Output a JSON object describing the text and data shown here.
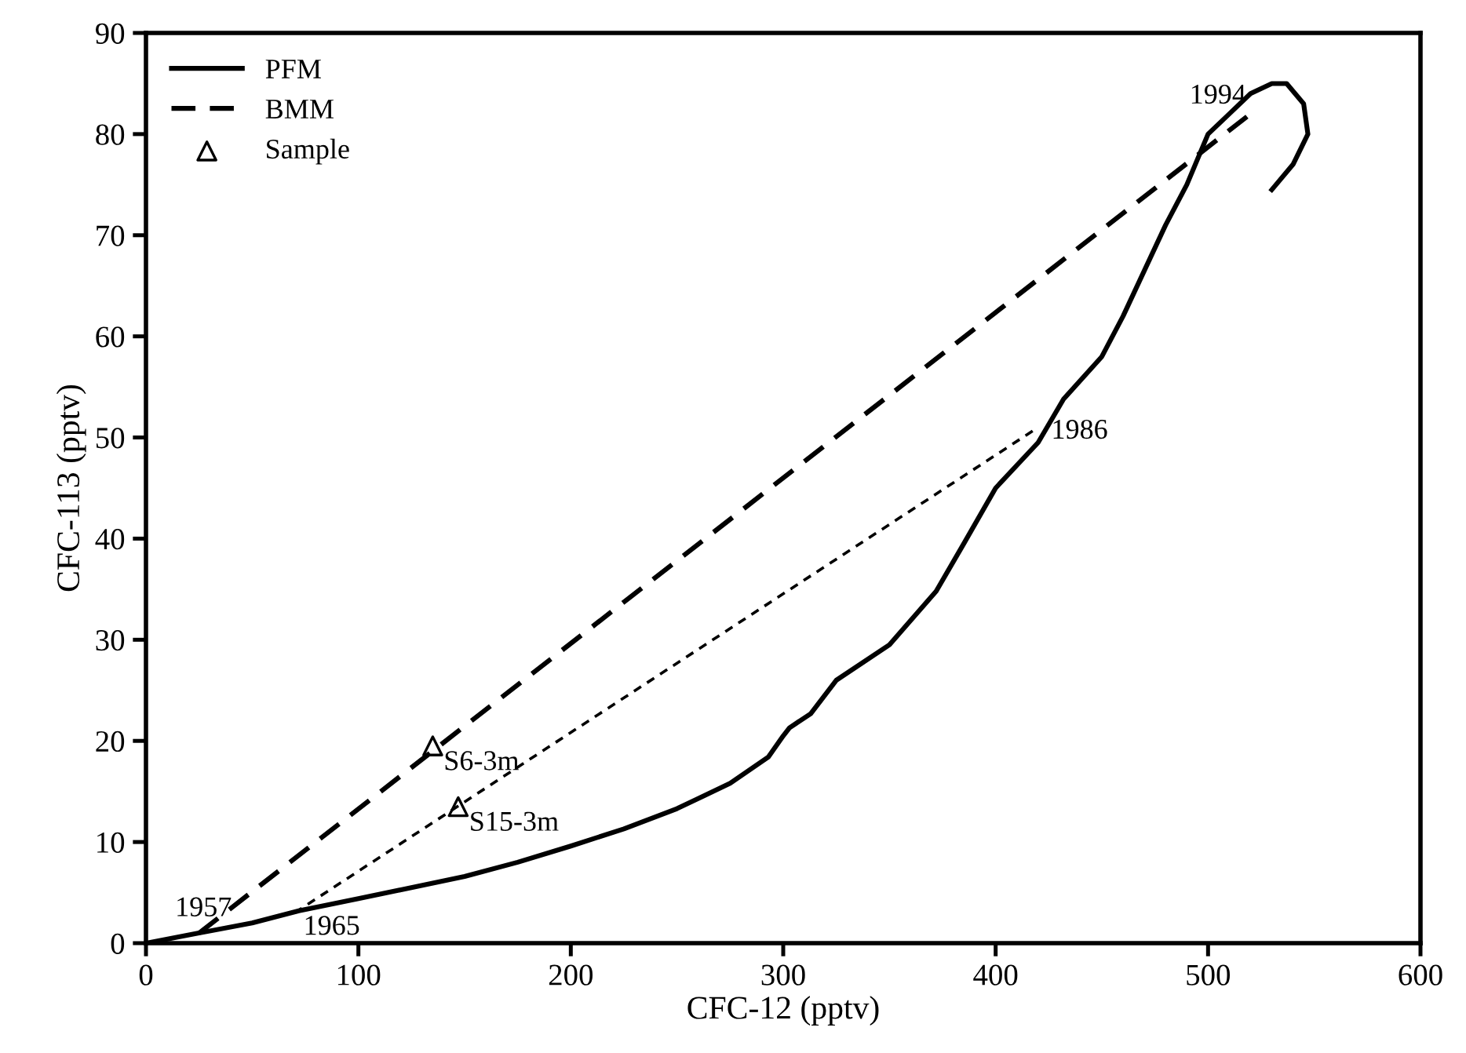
{
  "chart_data": {
    "type": "line",
    "xlabel": "CFC-12 (pptv)",
    "ylabel": "CFC-113 (pptv)",
    "xlim": [
      0,
      600
    ],
    "ylim": [
      0,
      90
    ],
    "xticks": [
      0,
      100,
      200,
      300,
      400,
      500,
      600
    ],
    "yticks": [
      0,
      10,
      20,
      30,
      40,
      50,
      60,
      70,
      80,
      90
    ],
    "grid": false,
    "legend": "top left",
    "marker": "none",
    "series": [
      {
        "name": "PFM",
        "color": "#000000",
        "line_style": "solid",
        "x": [
          0,
          25,
          50,
          72,
          100,
          150,
          175,
          200,
          225,
          250,
          275,
          293,
          300,
          303,
          313,
          325,
          350,
          372,
          385,
          400,
          420,
          432,
          450,
          460,
          470,
          480,
          490,
          500,
          510,
          520,
          530,
          537,
          545,
          547,
          540,
          530
        ],
        "values": [
          0,
          1.0,
          2.0,
          3.2,
          4.4,
          6.6,
          8.0,
          9.6,
          11.3,
          13.3,
          15.8,
          18.4,
          20.5,
          21.3,
          22.7,
          26,
          29.5,
          34.8,
          39.5,
          45,
          49.5,
          53.8,
          58,
          62,
          66.5,
          71,
          75,
          80,
          82,
          84,
          85,
          85,
          83,
          80,
          77,
          74.5
        ]
      },
      {
        "name": "BMM",
        "color": "#000000",
        "line_style": "dashed",
        "x": [
          25,
          520
        ],
        "values": [
          1,
          82
        ]
      },
      {
        "color": "#000000",
        "line_style": "dotted",
        "x": [
          70,
          420
        ],
        "values": [
          3,
          51
        ]
      },
      {
        "name": "Sample",
        "type": "scatter",
        "color": "#000000",
        "marker": "triangle",
        "x": [
          135,
          147
        ],
        "values": [
          19.5,
          13.5
        ]
      }
    ],
    "annotations": [
      {
        "text": "1957",
        "x": 25,
        "y": 1
      },
      {
        "text": "1965",
        "x": 70,
        "y": 3
      },
      {
        "text": "1986",
        "x": 420,
        "y": 51
      },
      {
        "text": "1994",
        "x": 520,
        "y": 82
      },
      {
        "text": "S6-3m",
        "x": 135,
        "y": 19.5
      },
      {
        "text": "S15-3m",
        "x": 147,
        "y": 13.5
      }
    ]
  }
}
